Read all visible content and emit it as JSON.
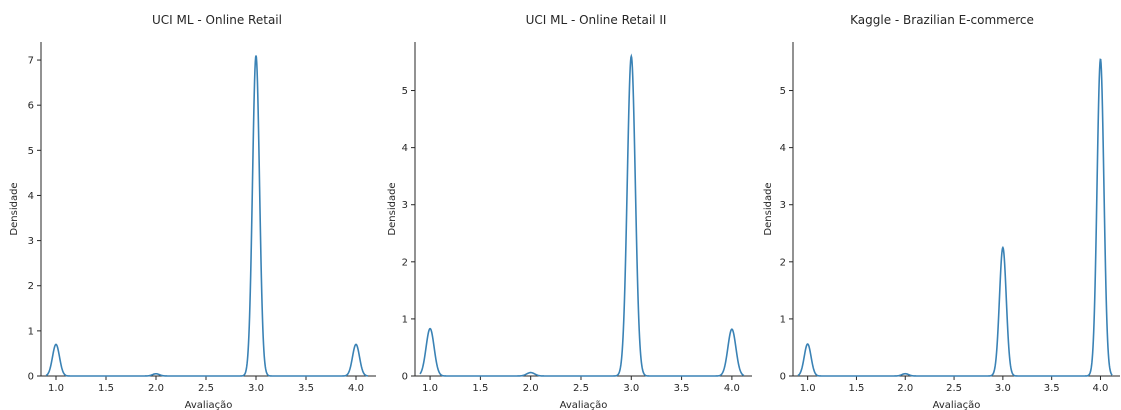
{
  "chart_data": [
    {
      "type": "line",
      "title": "UCI ML - Online Retail",
      "xlabel": "Avaliação",
      "ylabel": "Densidade",
      "xlim": [
        0.85,
        4.2
      ],
      "ylim": [
        0,
        7.4
      ],
      "xticks": [
        "1.0",
        "1.5",
        "2.0",
        "2.5",
        "3.0",
        "3.5",
        "4.0"
      ],
      "yticks": [
        "0",
        "1",
        "2",
        "3",
        "4",
        "5",
        "6",
        "7"
      ],
      "peaks": [
        {
          "x": 1.0,
          "y": 0.7
        },
        {
          "x": 2.0,
          "y": 0.05
        },
        {
          "x": 3.0,
          "y": 7.1
        },
        {
          "x": 4.0,
          "y": 0.7
        }
      ],
      "bandwidth": 0.035,
      "color": "#3a82b5"
    },
    {
      "type": "line",
      "title": "UCI ML - Online Retail II",
      "xlabel": "Avaliação",
      "ylabel": "Densidade",
      "xlim": [
        0.85,
        4.2
      ],
      "ylim": [
        0,
        5.85
      ],
      "xticks": [
        "1.0",
        "1.5",
        "2.0",
        "2.5",
        "3.0",
        "3.5",
        "4.0"
      ],
      "yticks": [
        "0",
        "1",
        "2",
        "3",
        "4",
        "5"
      ],
      "peaks": [
        {
          "x": 1.0,
          "y": 0.83
        },
        {
          "x": 2.0,
          "y": 0.06
        },
        {
          "x": 3.0,
          "y": 5.6
        },
        {
          "x": 4.0,
          "y": 0.82
        }
      ],
      "bandwidth": 0.04,
      "color": "#3a82b5"
    },
    {
      "type": "line",
      "title": "Kaggle - Brazilian E-commerce",
      "xlabel": "Avaliação",
      "ylabel": "Densidade",
      "xlim": [
        0.85,
        4.2
      ],
      "ylim": [
        0,
        5.85
      ],
      "xticks": [
        "1.0",
        "1.5",
        "2.0",
        "2.5",
        "3.0",
        "3.5",
        "4.0"
      ],
      "yticks": [
        "0",
        "1",
        "2",
        "3",
        "4",
        "5"
      ],
      "peaks": [
        {
          "x": 1.0,
          "y": 0.56
        },
        {
          "x": 2.0,
          "y": 0.04
        },
        {
          "x": 3.0,
          "y": 2.25
        },
        {
          "x": 4.0,
          "y": 5.55
        }
      ],
      "bandwidth": 0.035,
      "color": "#3a82b5"
    }
  ]
}
